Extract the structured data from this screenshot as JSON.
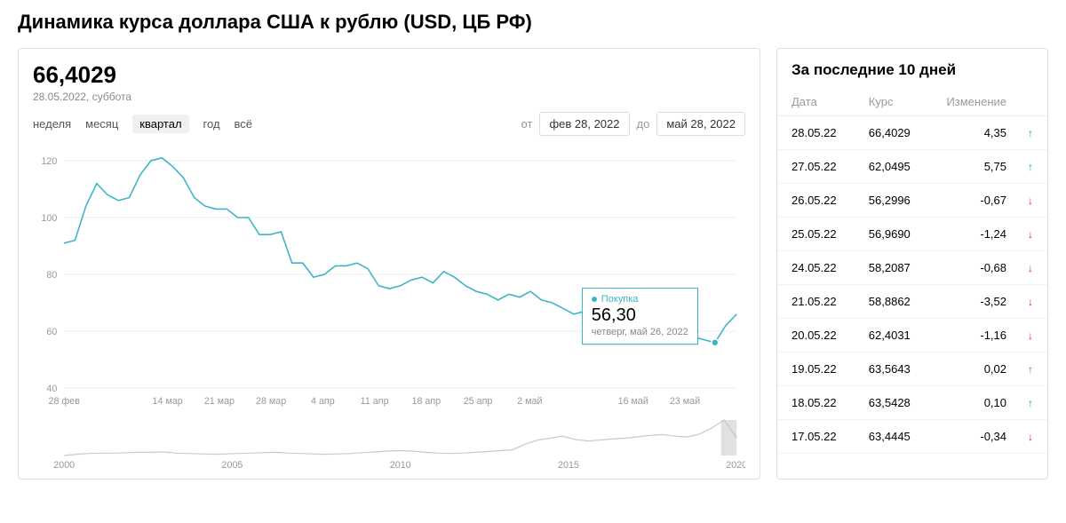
{
  "title": "Динамика курса доллара США к рублю (USD, ЦБ РФ)",
  "current": {
    "value": "66,4029",
    "date": "28.05.2022, суббота"
  },
  "periods": {
    "items": [
      "неделя",
      "месяц",
      "квартал",
      "год",
      "всё"
    ],
    "active_index": 2
  },
  "range": {
    "from_label": "от",
    "from_value": "фев 28, 2022",
    "to_label": "до",
    "to_value": "май 28, 2022"
  },
  "chart": {
    "type": "line",
    "line_color": "#3db5c7",
    "background_color": "#ffffff",
    "grid_color": "#eeeeee",
    "axis_text_color": "#999999",
    "ylim": [
      40,
      120
    ],
    "yticks": [
      40,
      60,
      80,
      100,
      120
    ],
    "xticks": [
      "28 фев",
      "",
      "14 мар",
      "21 мар",
      "28 мар",
      "4 апр",
      "11 апр",
      "18 апр",
      "25 апр",
      "2 май",
      "",
      "16 май",
      "23 май",
      ""
    ],
    "values": [
      91,
      92,
      104,
      112,
      108,
      106,
      107,
      115,
      120,
      121,
      118,
      114,
      107,
      104,
      103,
      103,
      100,
      100,
      94,
      94,
      95,
      84,
      84,
      79,
      80,
      83,
      83,
      84,
      82,
      76,
      75,
      76,
      78,
      79,
      77,
      81,
      79,
      76,
      74,
      73,
      71,
      73,
      72,
      74,
      71,
      70,
      68,
      66,
      67,
      67,
      65,
      63,
      64,
      64,
      63,
      62,
      60,
      59,
      58,
      57,
      56,
      62,
      66
    ],
    "marker_index": 60,
    "tooltip": {
      "label": "Покупка",
      "value": "56,30",
      "date": "четверг, май 26, 2022"
    }
  },
  "mini_chart": {
    "line_color": "#c9c9c9",
    "xticks": [
      "2000",
      "2005",
      "2010",
      "2015",
      "2020"
    ],
    "values": [
      22,
      25,
      27,
      28,
      28,
      29,
      30,
      30,
      31,
      28,
      27,
      26,
      25,
      26,
      27,
      28,
      29,
      30,
      28,
      27,
      26,
      25,
      26,
      27,
      29,
      31,
      33,
      34,
      33,
      30,
      28,
      27,
      28,
      30,
      32,
      34,
      36,
      50,
      60,
      65,
      70,
      62,
      58,
      60,
      63,
      65,
      68,
      72,
      74,
      70,
      68,
      75,
      90,
      110,
      66
    ]
  },
  "side": {
    "title": "За последние 10 дней",
    "columns": {
      "date": "Дата",
      "rate": "Курс",
      "change": "Изменение"
    },
    "rows": [
      {
        "date": "28.05.22",
        "rate": "66,4029",
        "change": "4,35",
        "dir": "up"
      },
      {
        "date": "27.05.22",
        "rate": "62,0495",
        "change": "5,75",
        "dir": "up"
      },
      {
        "date": "26.05.22",
        "rate": "56,2996",
        "change": "-0,67",
        "dir": "down"
      },
      {
        "date": "25.05.22",
        "rate": "56,9690",
        "change": "-1,24",
        "dir": "down"
      },
      {
        "date": "24.05.22",
        "rate": "58,2087",
        "change": "-0,68",
        "dir": "down"
      },
      {
        "date": "21.05.22",
        "rate": "58,8862",
        "change": "-3,52",
        "dir": "down"
      },
      {
        "date": "20.05.22",
        "rate": "62,4031",
        "change": "-1,16",
        "dir": "down"
      },
      {
        "date": "19.05.22",
        "rate": "63,5643",
        "change": "0,02",
        "dir": "up"
      },
      {
        "date": "18.05.22",
        "rate": "63,5428",
        "change": "0,10",
        "dir": "up"
      },
      {
        "date": "17.05.22",
        "rate": "63,4445",
        "change": "-0,34",
        "dir": "down"
      }
    ]
  }
}
